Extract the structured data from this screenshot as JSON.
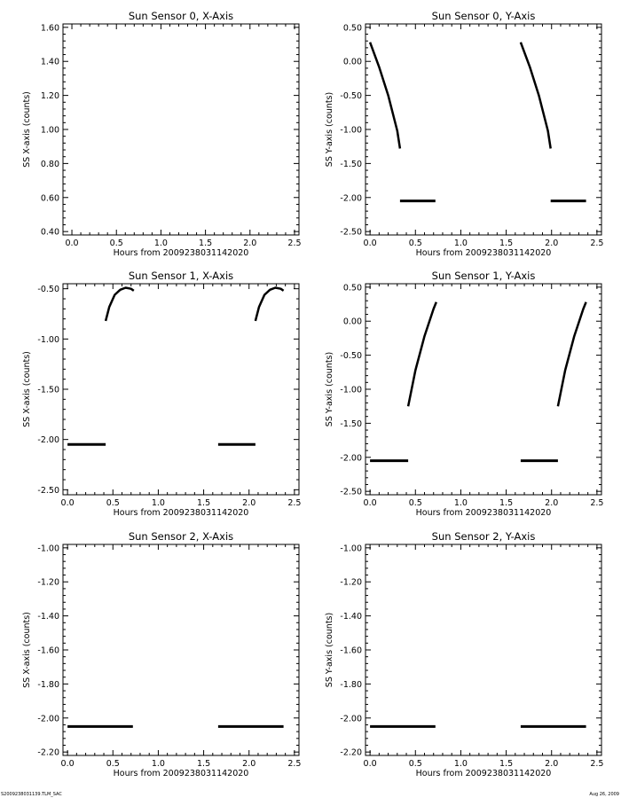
{
  "footer": {
    "left": "S2009238031139.TLM_SAC",
    "right": "Aug 26, 2009"
  },
  "chart_data": [
    {
      "type": "scatter",
      "title": "Sun Sensor 0, X-Axis",
      "xlabel": "Hours from 2009238031142020",
      "ylabel": "SS X-axis (counts)",
      "xlim": [
        -0.1,
        2.55
      ],
      "ylim": [
        0.38,
        1.62
      ],
      "xticks": [
        "0.0",
        "0.5",
        "1.0",
        "1.5",
        "2.0",
        "2.5"
      ],
      "yticks": [
        "0.40",
        "0.60",
        "0.80",
        "1.00",
        "1.20",
        "1.40",
        "1.60"
      ],
      "series": []
    },
    {
      "type": "scatter",
      "title": "Sun Sensor 0, Y-Axis",
      "xlabel": "Hours from 2009238031142020",
      "ylabel": "SS Y-axis (counts)",
      "xlim": [
        -0.05,
        2.55
      ],
      "ylim": [
        -2.55,
        0.55
      ],
      "xticks": [
        "0.0",
        "0.5",
        "1.0",
        "1.5",
        "2.0",
        "2.5"
      ],
      "yticks": [
        "-2.50",
        "-2.00",
        "-1.50",
        "-1.00",
        "-0.50",
        "0.00",
        "0.50"
      ],
      "series": [
        {
          "kind": "curve",
          "x": [
            0.0,
            0.1,
            0.2,
            0.3,
            0.33
          ],
          "y": [
            0.28,
            -0.08,
            -0.5,
            -1.02,
            -1.28
          ]
        },
        {
          "kind": "flat",
          "x": [
            0.33,
            0.72
          ],
          "y": [
            -2.05,
            -2.05
          ]
        },
        {
          "kind": "curve",
          "x": [
            1.66,
            1.76,
            1.86,
            1.96,
            1.99
          ],
          "y": [
            0.28,
            -0.08,
            -0.5,
            -1.02,
            -1.28
          ]
        },
        {
          "kind": "flat",
          "x": [
            1.99,
            2.38
          ],
          "y": [
            -2.05,
            -2.05
          ]
        }
      ]
    },
    {
      "type": "scatter",
      "title": "Sun Sensor 1, X-Axis",
      "xlabel": "Hours from 2009238031142020",
      "ylabel": "SS X-axis (counts)",
      "xlim": [
        -0.05,
        2.55
      ],
      "ylim": [
        -2.55,
        -0.45
      ],
      "xticks": [
        "0.0",
        "0.5",
        "1.0",
        "1.5",
        "2.0",
        "2.5"
      ],
      "yticks": [
        "-2.50",
        "-2.00",
        "-1.50",
        "-1.00",
        "-0.50"
      ],
      "series": [
        {
          "kind": "flat",
          "x": [
            0.0,
            0.42
          ],
          "y": [
            -2.05,
            -2.05
          ]
        },
        {
          "kind": "curve",
          "x": [
            0.42,
            0.46,
            0.52,
            0.58,
            0.64,
            0.7,
            0.73
          ],
          "y": [
            -0.82,
            -0.68,
            -0.56,
            -0.51,
            -0.49,
            -0.5,
            -0.52
          ]
        },
        {
          "kind": "flat",
          "x": [
            1.66,
            2.07
          ],
          "y": [
            -2.05,
            -2.05
          ]
        },
        {
          "kind": "curve",
          "x": [
            2.07,
            2.11,
            2.17,
            2.23,
            2.29,
            2.35,
            2.38
          ],
          "y": [
            -0.82,
            -0.68,
            -0.56,
            -0.51,
            -0.49,
            -0.5,
            -0.52
          ]
        }
      ]
    },
    {
      "type": "scatter",
      "title": "Sun Sensor 1, Y-Axis",
      "xlabel": "Hours from 2009238031142020",
      "ylabel": "SS Y-axis (counts)",
      "xlim": [
        -0.05,
        2.55
      ],
      "ylim": [
        -2.55,
        0.55
      ],
      "xticks": [
        "0.0",
        "0.5",
        "1.0",
        "1.5",
        "2.0",
        "2.5"
      ],
      "yticks": [
        "-2.50",
        "-2.00",
        "-1.50",
        "-1.00",
        "-0.50",
        "0.00",
        "0.50"
      ],
      "series": [
        {
          "kind": "flat",
          "x": [
            0.0,
            0.42
          ],
          "y": [
            -2.05,
            -2.05
          ]
        },
        {
          "kind": "curve",
          "x": [
            0.42,
            0.5,
            0.6,
            0.7,
            0.73
          ],
          "y": [
            -1.25,
            -0.72,
            -0.22,
            0.18,
            0.28
          ]
        },
        {
          "kind": "flat",
          "x": [
            1.66,
            2.07
          ],
          "y": [
            -2.05,
            -2.05
          ]
        },
        {
          "kind": "curve",
          "x": [
            2.07,
            2.15,
            2.25,
            2.35,
            2.38
          ],
          "y": [
            -1.25,
            -0.72,
            -0.22,
            0.18,
            0.28
          ]
        }
      ]
    },
    {
      "type": "scatter",
      "title": "Sun Sensor 2, X-Axis",
      "xlabel": "Hours from 2009238031142020",
      "ylabel": "SS X-axis (counts)",
      "xlim": [
        -0.05,
        2.55
      ],
      "ylim": [
        -2.22,
        -0.98
      ],
      "xticks": [
        "0.0",
        "0.5",
        "1.0",
        "1.5",
        "2.0",
        "2.5"
      ],
      "yticks": [
        "-2.20",
        "-2.00",
        "-1.80",
        "-1.60",
        "-1.40",
        "-1.20",
        "-1.00"
      ],
      "series": [
        {
          "kind": "flat",
          "x": [
            0.0,
            0.72
          ],
          "y": [
            -2.05,
            -2.05
          ]
        },
        {
          "kind": "flat",
          "x": [
            1.66,
            2.38
          ],
          "y": [
            -2.05,
            -2.05
          ]
        }
      ]
    },
    {
      "type": "scatter",
      "title": "Sun Sensor 2, Y-Axis",
      "xlabel": "Hours from 2009238031142020",
      "ylabel": "SS Y-axis (counts)",
      "xlim": [
        -0.05,
        2.55
      ],
      "ylim": [
        -2.22,
        -0.98
      ],
      "xticks": [
        "0.0",
        "0.5",
        "1.0",
        "1.5",
        "2.0",
        "2.5"
      ],
      "yticks": [
        "-2.20",
        "-2.00",
        "-1.80",
        "-1.60",
        "-1.40",
        "-1.20",
        "-1.00"
      ],
      "series": [
        {
          "kind": "flat",
          "x": [
            0.0,
            0.72
          ],
          "y": [
            -2.05,
            -2.05
          ]
        },
        {
          "kind": "flat",
          "x": [
            1.66,
            2.38
          ],
          "y": [
            -2.05,
            -2.05
          ]
        }
      ]
    }
  ]
}
